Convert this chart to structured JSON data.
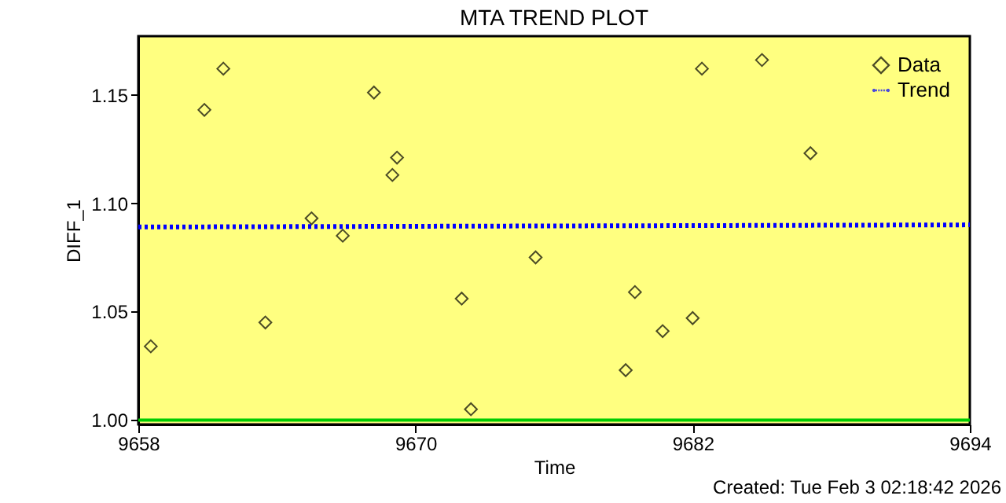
{
  "chart_data": {
    "type": "scatter",
    "title": "MTA TREND PLOT",
    "xlabel": "Time",
    "ylabel": "DIFF_1",
    "annotations": [
      "Created: Tue Feb  3 02:18:42 2026"
    ],
    "xlim": [
      9658,
      9694
    ],
    "xticks": [
      9658,
      9670,
      9682,
      9694
    ],
    "ylim": [
      0.998,
      1.177
    ],
    "yticks": [
      {
        "value": 1.0,
        "label": "1.00"
      },
      1.05,
      {
        "value": 1.1,
        "label": "1.10"
      },
      1.15
    ],
    "legend": "top right",
    "grid": false,
    "ref_lines": [
      {
        "axis": "y",
        "value": 1.0,
        "color": "#00cc00"
      }
    ],
    "series": [
      {
        "name": "Data",
        "marker": "diamond",
        "color": "#000000",
        "x": [
          9658.54,
          9660.86,
          9661.68,
          9663.5,
          9665.5,
          9666.85,
          9668.2,
          9669.0,
          9669.2,
          9672.0,
          9672.4,
          9675.2,
          9679.1,
          9679.5,
          9680.7,
          9682.0,
          9682.4,
          9685.0,
          9687.1
        ],
        "values": [
          1.034,
          1.143,
          1.162,
          1.045,
          1.093,
          1.085,
          1.151,
          1.113,
          1.121,
          1.056,
          1.005,
          1.075,
          1.023,
          1.059,
          1.041,
          1.047,
          1.162,
          1.166,
          1.123
        ]
      },
      {
        "name": "Trend",
        "type": "line",
        "line_style": "dotted",
        "color": "#0000ff",
        "x": [
          9658,
          9694
        ],
        "values": [
          1.089,
          1.09
        ]
      }
    ]
  }
}
